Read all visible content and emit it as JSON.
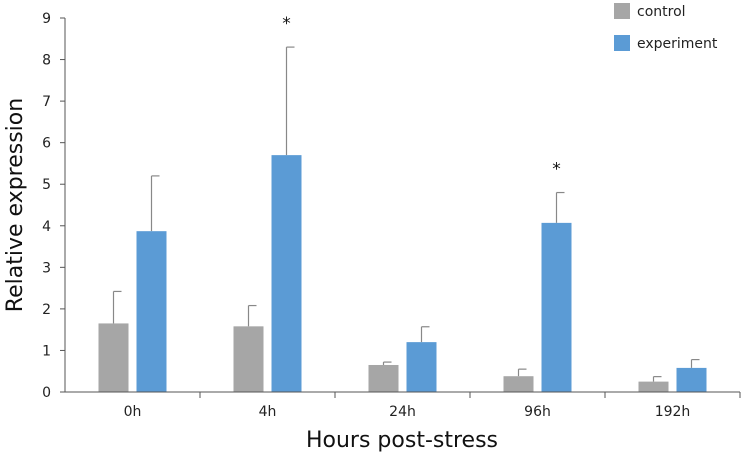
{
  "chart_data": {
    "type": "bar",
    "title": "",
    "xlabel": "Hours post-stress",
    "ylabel": "Relative expression",
    "ylim": [
      0,
      9
    ],
    "yticks": [
      "0",
      "1",
      "2",
      "3",
      "4",
      "5",
      "6",
      "7",
      "8",
      "9"
    ],
    "categories": [
      "0h",
      "4h",
      "24h",
      "96h",
      "192h"
    ],
    "series": [
      {
        "name": "control",
        "color": "#a6a6a6",
        "values": [
          1.65,
          1.58,
          0.65,
          0.38,
          0.25
        ],
        "errors": [
          0.77,
          0.5,
          0.07,
          0.17,
          0.12
        ]
      },
      {
        "name": "experiment",
        "color": "#5b9bd5",
        "values": [
          3.87,
          5.7,
          1.2,
          4.07,
          0.58
        ],
        "errors": [
          1.33,
          2.6,
          0.37,
          0.73,
          0.2
        ]
      }
    ],
    "annotations": [
      {
        "category": "4h",
        "series": "experiment",
        "text": "*"
      },
      {
        "category": "96h",
        "series": "experiment",
        "text": "*"
      }
    ],
    "legend_position": "top-right",
    "grid": false
  }
}
